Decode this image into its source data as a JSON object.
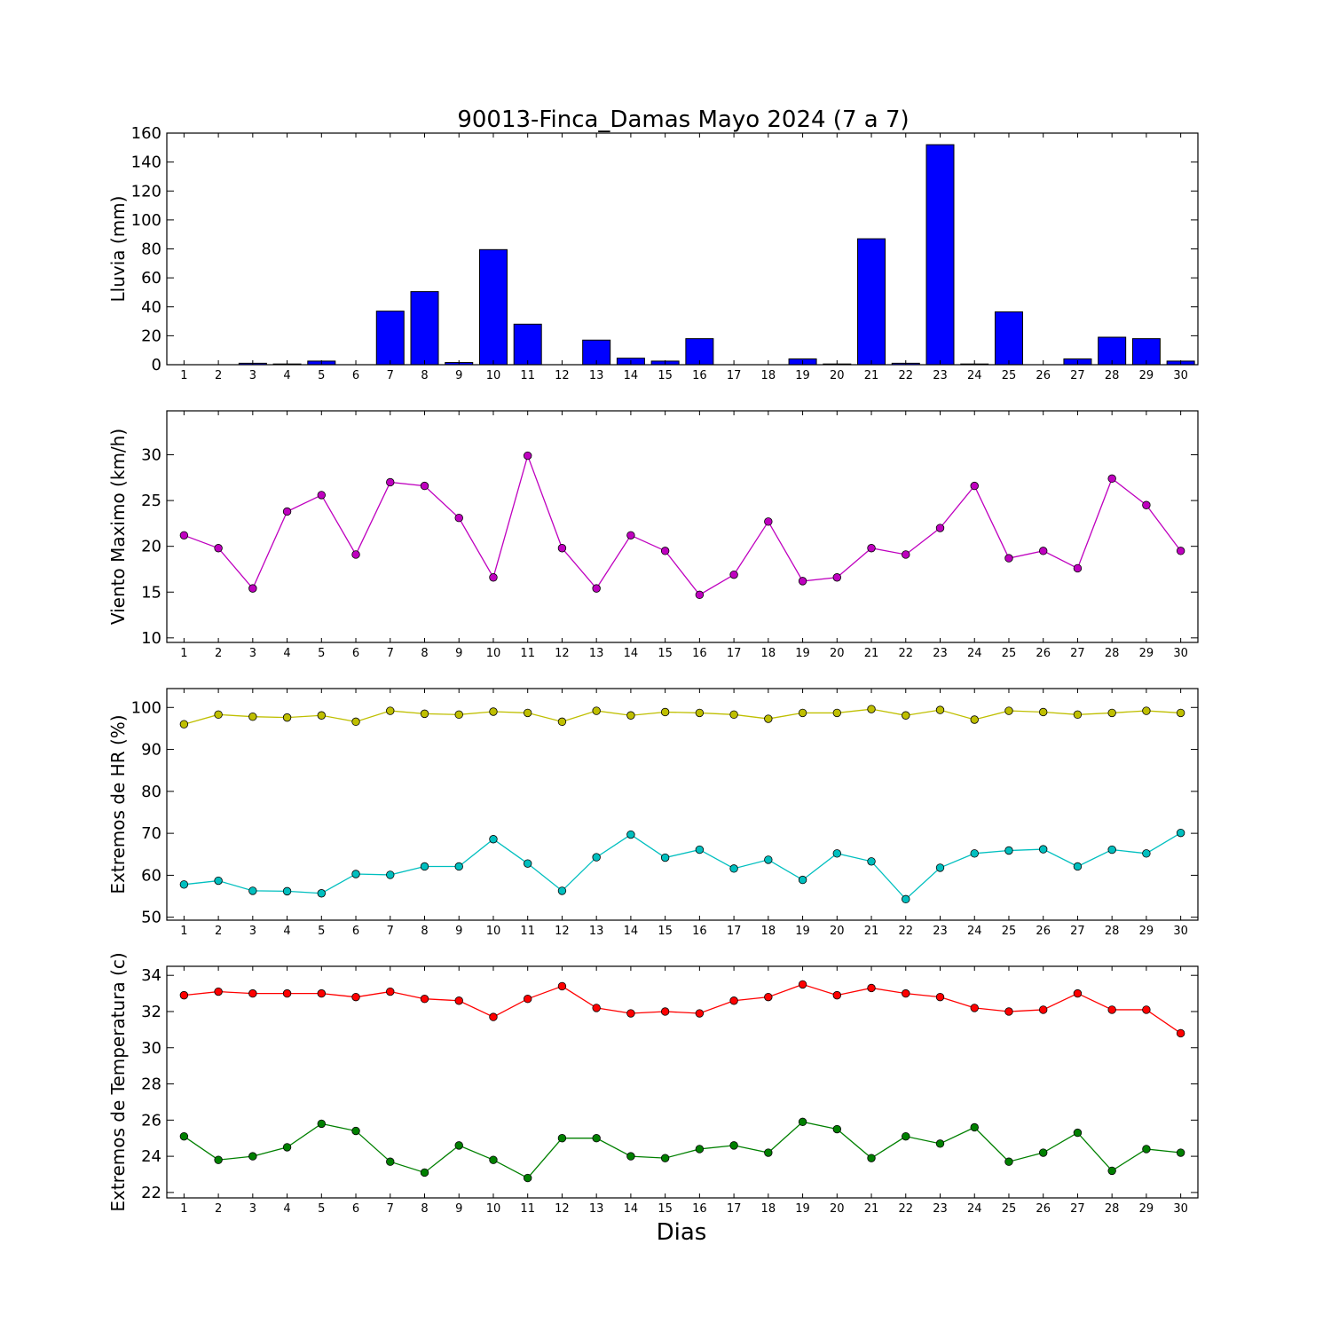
{
  "title": "90013-Finca_Damas Mayo 2024  (7 a 7)",
  "xlabel": "Dias",
  "colors": {
    "rain": "#0000ff",
    "wind": "#bf00bf",
    "hr_max": "#bfbf00",
    "hr_min": "#00bfbf",
    "temp_max": "#ff0000",
    "temp_min": "#008000"
  },
  "chart_data": [
    {
      "type": "bar",
      "ylabel": "Lluvia (mm)",
      "categories": [
        1,
        2,
        3,
        4,
        5,
        6,
        7,
        8,
        9,
        10,
        11,
        12,
        13,
        14,
        15,
        16,
        17,
        18,
        19,
        20,
        21,
        22,
        23,
        24,
        25,
        26,
        27,
        28,
        29,
        30
      ],
      "ylim": [
        0,
        160
      ],
      "yticks": [
        0,
        20,
        40,
        60,
        80,
        100,
        120,
        140,
        160
      ],
      "series": [
        {
          "color": "#0000ff",
          "values": [
            0,
            0,
            1,
            0.5,
            2.5,
            0,
            37,
            50.5,
            1.5,
            79.5,
            28,
            0,
            17,
            4.5,
            2.5,
            18,
            0,
            0,
            4,
            0.5,
            87,
            1,
            152,
            0.5,
            36.5,
            0,
            4,
            19,
            18,
            2.5
          ]
        }
      ]
    },
    {
      "type": "line",
      "ylabel": "Viento Maximo (km/h)",
      "categories": [
        1,
        2,
        3,
        4,
        5,
        6,
        7,
        8,
        9,
        10,
        11,
        12,
        13,
        14,
        15,
        16,
        17,
        18,
        19,
        20,
        21,
        22,
        23,
        24,
        25,
        26,
        27,
        28,
        29,
        30
      ],
      "ylim": [
        9.5,
        34.8
      ],
      "yticks": [
        10,
        15,
        20,
        25,
        30
      ],
      "series": [
        {
          "color": "#bf00bf",
          "values": [
            21.2,
            19.8,
            15.4,
            23.8,
            25.6,
            19.1,
            27.0,
            26.6,
            23.1,
            16.6,
            29.9,
            19.8,
            15.4,
            21.2,
            19.5,
            14.7,
            16.9,
            22.7,
            16.2,
            16.6,
            19.8,
            19.1,
            22.0,
            26.6,
            18.7,
            19.5,
            17.6,
            27.4,
            24.5,
            19.5
          ]
        }
      ]
    },
    {
      "type": "line",
      "ylabel": "Extremos de HR (%)",
      "categories": [
        1,
        2,
        3,
        4,
        5,
        6,
        7,
        8,
        9,
        10,
        11,
        12,
        13,
        14,
        15,
        16,
        17,
        18,
        19,
        20,
        21,
        22,
        23,
        24,
        25,
        26,
        27,
        28,
        29,
        30
      ],
      "ylim": [
        49.3,
        104.5
      ],
      "yticks": [
        50,
        60,
        70,
        80,
        90,
        100
      ],
      "series": [
        {
          "color": "#bfbf00",
          "values": [
            96.0,
            98.3,
            97.8,
            97.6,
            98.1,
            96.6,
            99.2,
            98.5,
            98.3,
            99.0,
            98.7,
            96.6,
            99.2,
            98.1,
            98.9,
            98.7,
            98.3,
            97.3,
            98.7,
            98.7,
            99.6,
            98.1,
            99.4,
            97.1,
            99.2,
            98.9,
            98.3,
            98.7,
            99.2,
            98.7
          ]
        },
        {
          "color": "#00bfbf",
          "values": [
            57.8,
            58.7,
            56.3,
            56.2,
            55.7,
            60.3,
            60.1,
            62.1,
            62.1,
            68.6,
            62.8,
            56.3,
            64.3,
            69.7,
            64.2,
            66.1,
            61.6,
            63.7,
            58.9,
            65.2,
            63.3,
            54.3,
            61.8,
            65.2,
            65.9,
            66.2,
            62.1,
            66.1,
            65.2,
            70.1
          ]
        }
      ]
    },
    {
      "type": "line",
      "ylabel": "Extremos de Temperatura (c)",
      "categories": [
        1,
        2,
        3,
        4,
        5,
        6,
        7,
        8,
        9,
        10,
        11,
        12,
        13,
        14,
        15,
        16,
        17,
        18,
        19,
        20,
        21,
        22,
        23,
        24,
        25,
        26,
        27,
        28,
        29,
        30
      ],
      "ylim": [
        21.7,
        34.5
      ],
      "yticks": [
        22,
        24,
        26,
        28,
        30,
        32,
        34
      ],
      "series": [
        {
          "color": "#ff0000",
          "values": [
            32.9,
            33.1,
            33.0,
            33.0,
            33.0,
            32.8,
            33.1,
            32.7,
            32.6,
            31.7,
            32.7,
            33.4,
            32.2,
            31.9,
            32.0,
            31.9,
            32.6,
            32.8,
            33.5,
            32.9,
            33.3,
            33.0,
            32.8,
            32.2,
            32.0,
            32.1,
            33.0,
            32.1,
            32.1,
            30.8
          ]
        },
        {
          "color": "#008000",
          "values": [
            25.1,
            23.8,
            24.0,
            24.5,
            25.8,
            25.4,
            23.7,
            23.1,
            24.6,
            23.8,
            22.8,
            25.0,
            25.0,
            24.0,
            23.9,
            24.4,
            24.6,
            24.2,
            25.9,
            25.5,
            23.9,
            25.1,
            24.7,
            25.6,
            23.7,
            24.2,
            25.3,
            23.2,
            24.4,
            24.2
          ]
        }
      ]
    }
  ]
}
